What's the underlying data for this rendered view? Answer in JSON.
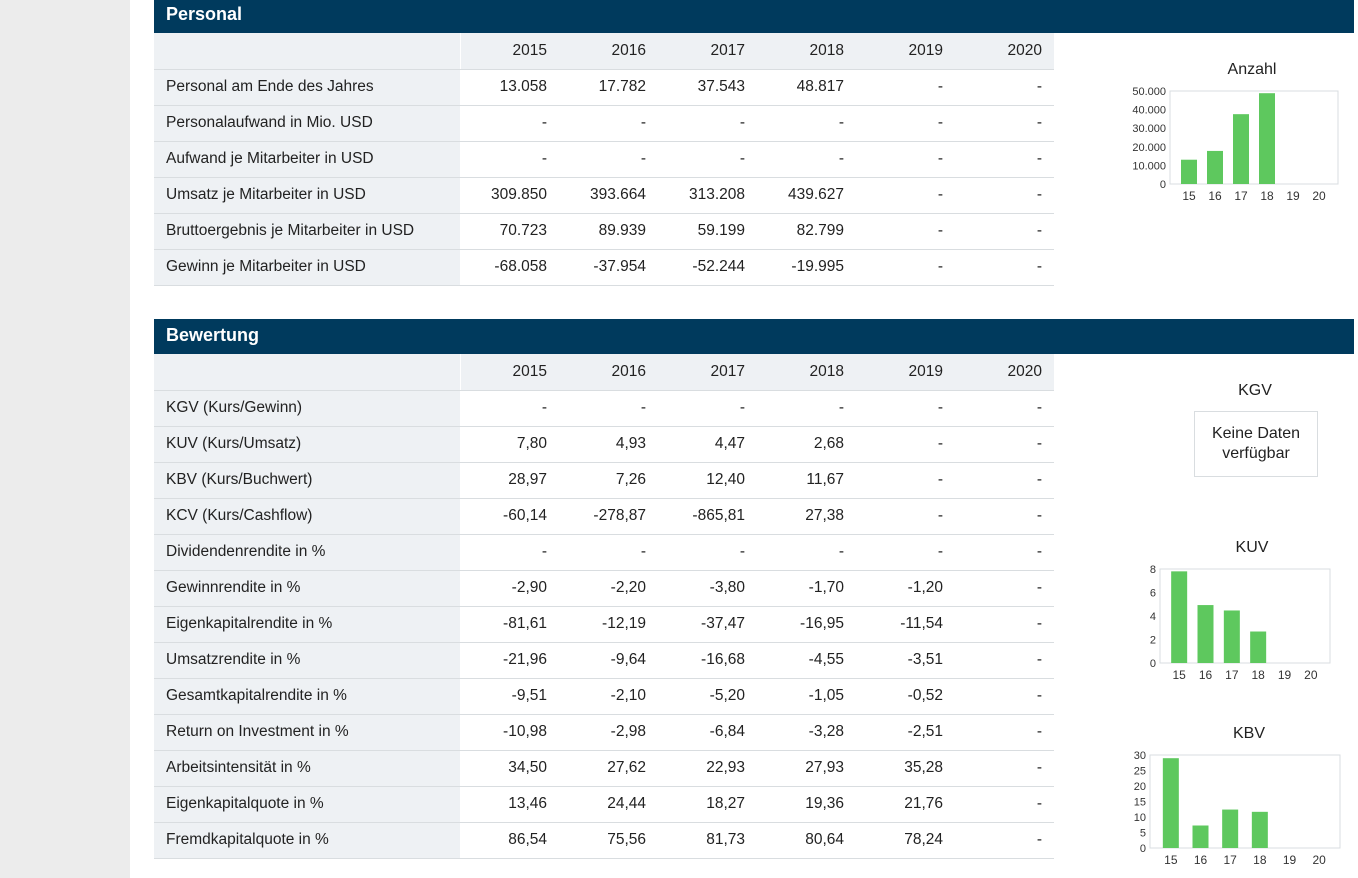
{
  "personal": {
    "title": "Personal",
    "years": [
      "2015",
      "2016",
      "2017",
      "2018",
      "2019",
      "2020"
    ],
    "rows": [
      {
        "label": "Personal am Ende des Jahres",
        "values": [
          "13.058",
          "17.782",
          "37.543",
          "48.817",
          "-",
          "-"
        ]
      },
      {
        "label": "Personalaufwand in Mio. USD",
        "values": [
          "-",
          "-",
          "-",
          "-",
          "-",
          "-"
        ]
      },
      {
        "label": "Aufwand je Mitarbeiter in USD",
        "values": [
          "-",
          "-",
          "-",
          "-",
          "-",
          "-"
        ]
      },
      {
        "label": "Umsatz je Mitarbeiter in USD",
        "values": [
          "309.850",
          "393.664",
          "313.208",
          "439.627",
          "-",
          "-"
        ]
      },
      {
        "label": "Bruttoergebnis je Mitarbeiter in USD",
        "values": [
          "70.723",
          "89.939",
          "59.199",
          "82.799",
          "-",
          "-"
        ]
      },
      {
        "label": "Gewinn je Mitarbeiter in USD",
        "values": [
          "-68.058",
          "-37.954",
          "-52.244",
          "-19.995",
          "-",
          "-"
        ]
      }
    ]
  },
  "bewertung": {
    "title": "Bewertung",
    "years": [
      "2015",
      "2016",
      "2017",
      "2018",
      "2019",
      "2020"
    ],
    "rows": [
      {
        "label": "KGV (Kurs/Gewinn)",
        "values": [
          "-",
          "-",
          "-",
          "-",
          "-",
          "-"
        ]
      },
      {
        "label": "KUV (Kurs/Umsatz)",
        "values": [
          "7,80",
          "4,93",
          "4,47",
          "2,68",
          "-",
          "-"
        ]
      },
      {
        "label": "KBV (Kurs/Buchwert)",
        "values": [
          "28,97",
          "7,26",
          "12,40",
          "11,67",
          "-",
          "-"
        ]
      },
      {
        "label": "KCV (Kurs/Cashflow)",
        "values": [
          "-60,14",
          "-278,87",
          "-865,81",
          "27,38",
          "-",
          "-"
        ]
      },
      {
        "label": "Dividendenrendite in %",
        "values": [
          "-",
          "-",
          "-",
          "-",
          "-",
          "-"
        ]
      },
      {
        "label": "Gewinnrendite in %",
        "values": [
          "-2,90",
          "-2,20",
          "-3,80",
          "-1,70",
          "-1,20",
          "-"
        ]
      },
      {
        "label": "Eigenkapitalrendite in %",
        "values": [
          "-81,61",
          "-12,19",
          "-37,47",
          "-16,95",
          "-11,54",
          "-"
        ]
      },
      {
        "label": "Umsatzrendite in %",
        "values": [
          "-21,96",
          "-9,64",
          "-16,68",
          "-4,55",
          "-3,51",
          "-"
        ]
      },
      {
        "label": "Gesamtkapitalrendite in %",
        "values": [
          "-9,51",
          "-2,10",
          "-5,20",
          "-1,05",
          "-0,52",
          "-"
        ]
      },
      {
        "label": "Return on Investment in %",
        "values": [
          "-10,98",
          "-2,98",
          "-6,84",
          "-3,28",
          "-2,51",
          "-"
        ]
      },
      {
        "label": "Arbeitsintensität in %",
        "values": [
          "34,50",
          "27,62",
          "22,93",
          "27,93",
          "35,28",
          "-"
        ]
      },
      {
        "label": "Eigenkapitalquote in %",
        "values": [
          "13,46",
          "24,44",
          "18,27",
          "19,36",
          "21,76",
          "-"
        ]
      },
      {
        "label": "Fremdkapitalquote in %",
        "values": [
          "86,54",
          "75,56",
          "81,73",
          "80,64",
          "78,24",
          "-"
        ]
      }
    ]
  },
  "kgv_chart": {
    "title": "KGV",
    "no_data_text": "Keine Daten verfügbar"
  },
  "colors": {
    "header_bg": "#003a5d",
    "bar": "#5ec85e",
    "label_bg": "#eef1f4"
  },
  "chart_data": [
    {
      "type": "bar",
      "title": "Anzahl",
      "categories": [
        "15",
        "16",
        "17",
        "18",
        "19",
        "20"
      ],
      "values": [
        13058,
        17782,
        37543,
        48817,
        null,
        null
      ],
      "ylim": [
        0,
        50000
      ],
      "ticks": [
        "0",
        "10.000",
        "20.000",
        "30.000",
        "40.000",
        "50.000"
      ],
      "tick_values": [
        0,
        10000,
        20000,
        30000,
        40000,
        50000
      ]
    },
    {
      "type": "bar",
      "title": "KUV",
      "categories": [
        "15",
        "16",
        "17",
        "18",
        "19",
        "20"
      ],
      "values": [
        7.8,
        4.93,
        4.47,
        2.68,
        null,
        null
      ],
      "ylim": [
        0,
        8
      ],
      "ticks": [
        "0",
        "2",
        "4",
        "6",
        "8"
      ],
      "tick_values": [
        0,
        2,
        4,
        6,
        8
      ]
    },
    {
      "type": "bar",
      "title": "KBV",
      "categories": [
        "15",
        "16",
        "17",
        "18",
        "19",
        "20"
      ],
      "values": [
        28.97,
        7.26,
        12.4,
        11.67,
        null,
        null
      ],
      "ylim": [
        0,
        30
      ],
      "ticks": [
        "0",
        "5",
        "10",
        "15",
        "20",
        "25",
        "30"
      ],
      "tick_values": [
        0,
        5,
        10,
        15,
        20,
        25,
        30
      ]
    }
  ]
}
